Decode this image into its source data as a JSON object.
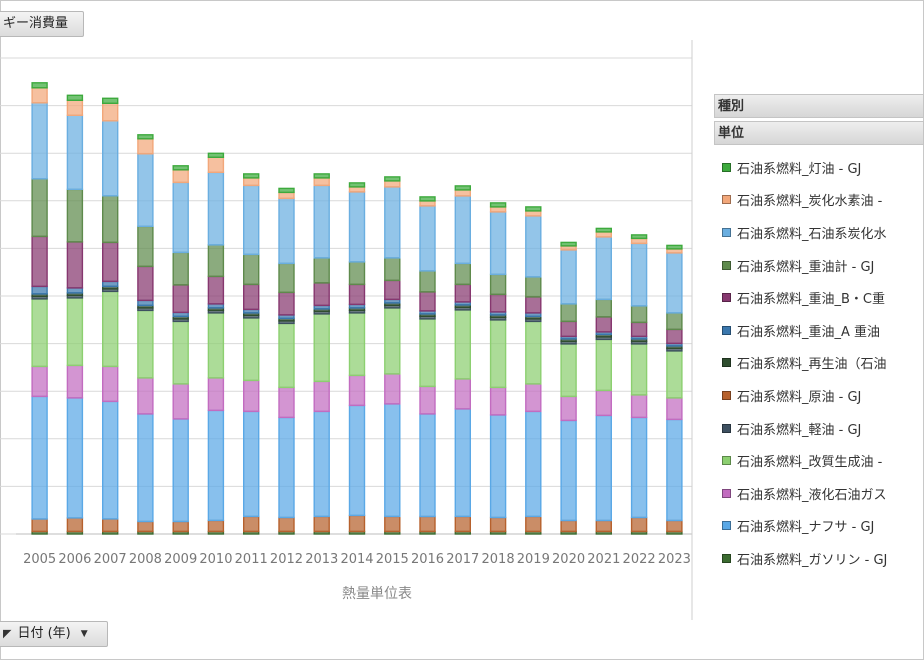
{
  "header": {
    "field_button_label": "ギー消費量"
  },
  "footer": {
    "date_button_label": "日付 (年)",
    "filter_icon": "filter-triangle-icon",
    "dropdown_icon": "chevron-down-icon"
  },
  "legend": {
    "header_type": "種別",
    "header_unit": "単位",
    "items": [
      {
        "label": "石油系燃料_灯油 - GJ",
        "color": "#3daa3d"
      },
      {
        "label": "石油系燃料_炭化水素油 -",
        "color": "#f2a77a"
      },
      {
        "label": "石油系燃料_石油系炭化水",
        "color": "#6aaee0"
      },
      {
        "label": "石油系燃料_重油計 - GJ",
        "color": "#5e8a4c"
      },
      {
        "label": "石油系燃料_重油_B・C重",
        "color": "#86376f"
      },
      {
        "label": "石油系燃料_重油_A 重油",
        "color": "#3a77ad"
      },
      {
        "label": "石油系燃料_再生油（石油",
        "color": "#2f4e2f"
      },
      {
        "label": "石油系燃料_原油 - GJ",
        "color": "#b6612d"
      },
      {
        "label": "石油系燃料_軽油 - GJ",
        "color": "#3d5060"
      },
      {
        "label": "石油系燃料_改質生成油 -",
        "color": "#8ccf70"
      },
      {
        "label": "石油系燃料_液化石油ガス",
        "color": "#c26cc0"
      },
      {
        "label": "石油系燃料_ナフサ - GJ",
        "color": "#5aa8e6"
      },
      {
        "label": "石油系燃料_ガソリン - GJ",
        "color": "#3b6b30"
      }
    ]
  },
  "chart_data": {
    "type": "bar",
    "stacked": true,
    "xlabel": "熱量単位表",
    "y_tick_count": 10,
    "grid": true,
    "legend_position": "right",
    "categories": [
      "2005",
      "2006",
      "2007",
      "2008",
      "2009",
      "2010",
      "2011",
      "2012",
      "2013",
      "2014",
      "2015",
      "2016",
      "2017",
      "2018",
      "2019",
      "2020",
      "2021",
      "2022",
      "2023"
    ],
    "series": [
      {
        "name": "石油系燃料_ガソリン - GJ",
        "color": "#3b6b30",
        "values": [
          0.05,
          0.05,
          0.05,
          0.05,
          0.05,
          0.05,
          0.05,
          0.05,
          0.05,
          0.05,
          0.05,
          0.05,
          0.05,
          0.05,
          0.05,
          0.05,
          0.05,
          0.05,
          0.05
        ]
      },
      {
        "name": "石油系燃料_原油 - GJ",
        "color": "#b6612d",
        "values": [
          0.25,
          0.27,
          0.25,
          0.2,
          0.2,
          0.22,
          0.3,
          0.28,
          0.3,
          0.32,
          0.3,
          0.3,
          0.3,
          0.28,
          0.3,
          0.22,
          0.22,
          0.28,
          0.22
        ]
      },
      {
        "name": "石油系燃料_ナフサ - GJ",
        "color": "#5aa8e6",
        "values": [
          2.45,
          2.4,
          2.35,
          2.15,
          2.05,
          2.2,
          2.1,
          2.0,
          2.1,
          2.2,
          2.25,
          2.05,
          2.15,
          2.05,
          2.1,
          2.0,
          2.1,
          2.0,
          2.02
        ]
      },
      {
        "name": "石油系燃料_液化石油ガス",
        "color": "#c26cc0",
        "values": [
          0.6,
          0.65,
          0.7,
          0.72,
          0.7,
          0.65,
          0.62,
          0.6,
          0.6,
          0.6,
          0.6,
          0.55,
          0.6,
          0.55,
          0.55,
          0.48,
          0.5,
          0.45,
          0.43
        ]
      },
      {
        "name": "石油系燃料_改質生成油 -",
        "color": "#8ccf70",
        "values": [
          1.35,
          1.35,
          1.5,
          1.35,
          1.25,
          1.3,
          1.25,
          1.28,
          1.35,
          1.25,
          1.32,
          1.35,
          1.38,
          1.35,
          1.25,
          1.05,
          1.02,
          1.02,
          0.94
        ]
      },
      {
        "name": "石油系燃料_軽油 - GJ",
        "color": "#3d5060",
        "values": [
          0.05,
          0.05,
          0.05,
          0.05,
          0.05,
          0.05,
          0.05,
          0.05,
          0.05,
          0.05,
          0.05,
          0.05,
          0.05,
          0.05,
          0.05,
          0.05,
          0.05,
          0.05,
          0.05
        ]
      },
      {
        "name": "石油系燃料_再生油（石油",
        "color": "#2f4e2f",
        "values": [
          0.05,
          0.05,
          0.05,
          0.05,
          0.05,
          0.05,
          0.05,
          0.05,
          0.05,
          0.05,
          0.05,
          0.05,
          0.05,
          0.05,
          0.05,
          0.05,
          0.05,
          0.05,
          0.05
        ]
      },
      {
        "name": "石油系燃料_重油_A 重油",
        "color": "#3a77ad",
        "values": [
          0.15,
          0.1,
          0.1,
          0.1,
          0.08,
          0.08,
          0.07,
          0.07,
          0.07,
          0.07,
          0.07,
          0.06,
          0.06,
          0.06,
          0.07,
          0.05,
          0.05,
          0.05,
          0.05
        ]
      },
      {
        "name": "石油系燃料_重油_B・C重",
        "color": "#86376f",
        "values": [
          1.0,
          0.92,
          0.78,
          0.68,
          0.55,
          0.55,
          0.5,
          0.45,
          0.45,
          0.4,
          0.38,
          0.38,
          0.35,
          0.35,
          0.32,
          0.3,
          0.3,
          0.28,
          0.28
        ]
      },
      {
        "name": "石油系燃料_重油計 - GJ",
        "color": "#5e8a4c",
        "values": [
          1.15,
          1.05,
          0.93,
          0.8,
          0.65,
          0.63,
          0.6,
          0.58,
          0.5,
          0.45,
          0.45,
          0.42,
          0.42,
          0.4,
          0.4,
          0.35,
          0.35,
          0.33,
          0.33
        ]
      },
      {
        "name": "石油系燃料_石油系炭化水",
        "color": "#6aaee0",
        "values": [
          1.52,
          1.48,
          1.5,
          1.45,
          1.4,
          1.45,
          1.38,
          1.3,
          1.45,
          1.4,
          1.42,
          1.3,
          1.35,
          1.25,
          1.22,
          1.08,
          1.25,
          1.25,
          1.2
        ]
      },
      {
        "name": "石油系燃料_炭化水素油 -",
        "color": "#f2a77a",
        "values": [
          0.3,
          0.3,
          0.35,
          0.3,
          0.25,
          0.3,
          0.15,
          0.12,
          0.15,
          0.1,
          0.12,
          0.1,
          0.12,
          0.1,
          0.1,
          0.08,
          0.1,
          0.1,
          0.08
        ]
      },
      {
        "name": "石油系燃料_灯油 - GJ",
        "color": "#3daa3d",
        "values": [
          0.1,
          0.1,
          0.1,
          0.08,
          0.08,
          0.08,
          0.08,
          0.08,
          0.08,
          0.08,
          0.08,
          0.08,
          0.08,
          0.08,
          0.08,
          0.07,
          0.07,
          0.07,
          0.07
        ]
      }
    ]
  }
}
